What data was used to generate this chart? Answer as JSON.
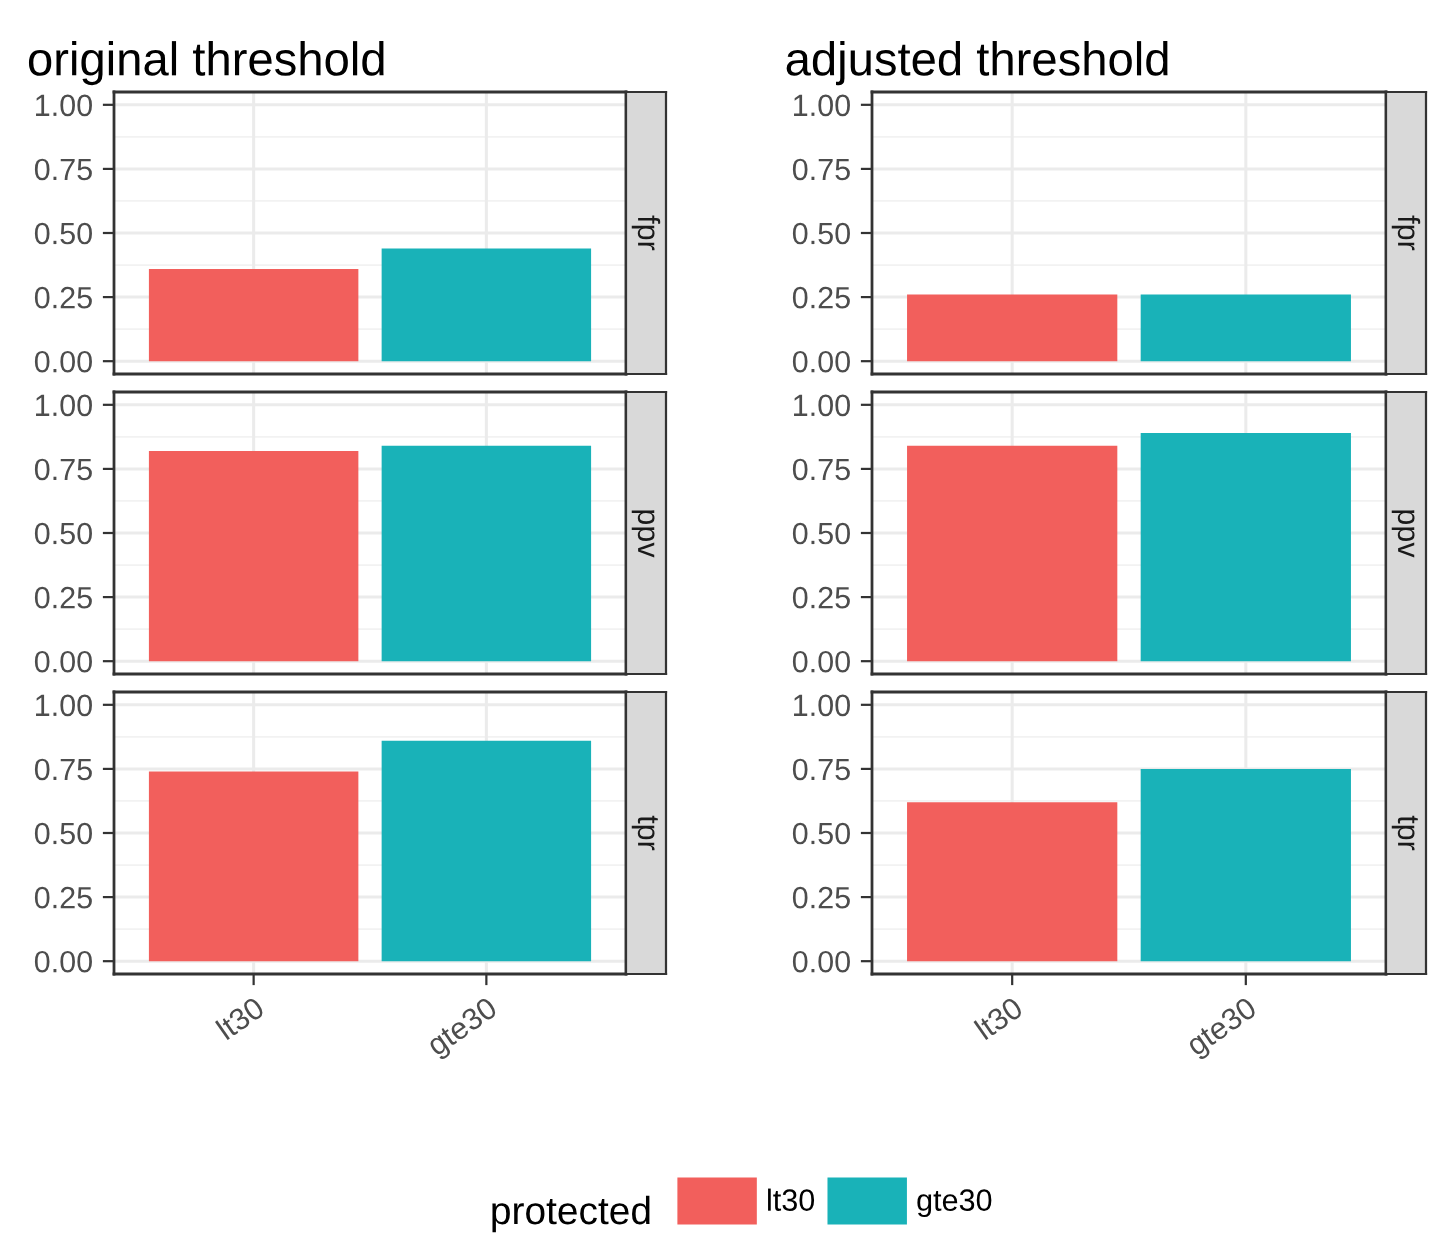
{
  "chart_data": [
    {
      "type": "bar",
      "title": "original threshold",
      "categories": [
        null,
        null
      ],
      "series": [
        {
          "color": "#f25f5c",
          "values": [
            0.36,
            null
          ]
        },
        {
          "color": "#19b2b8",
          "values": [
            null,
            0.44
          ]
        }
      ],
      "ylim": [
        -0.05,
        1.05
      ],
      "yticks": [
        {
          "value": 0,
          "label": "0.00"
        },
        {
          "value": 0.25,
          "label": "0.25"
        },
        {
          "value": 0.5,
          "label": "0.50"
        },
        {
          "value": 0.75,
          "label": "0.75"
        },
        {
          "value": 1,
          "label": "1.00"
        }
      ],
      "grid": true,
      "tick_labels": "y",
      "annotations": [
        "fpr"
      ]
    },
    {
      "type": "bar",
      "title": "adjusted threshold",
      "categories": [
        null,
        null
      ],
      "series": [
        {
          "color": "#f25f5c",
          "values": [
            0.26,
            null
          ]
        },
        {
          "color": "#19b2b8",
          "values": [
            null,
            0.26
          ]
        }
      ],
      "ylim": [
        -0.05,
        1.05
      ],
      "yticks": [
        {
          "value": 0,
          "label": "0.00"
        },
        {
          "value": 0.25,
          "label": "0.25"
        },
        {
          "value": 0.5,
          "label": "0.50"
        },
        {
          "value": 0.75,
          "label": "0.75"
        },
        {
          "value": 1,
          "label": "1.00"
        }
      ],
      "grid": true,
      "tick_labels": "y",
      "annotations": [
        "fpr"
      ]
    },
    {
      "type": "bar",
      "categories": [
        null,
        null
      ],
      "series": [
        {
          "color": "#f25f5c",
          "values": [
            0.82,
            null
          ]
        },
        {
          "color": "#19b2b8",
          "values": [
            null,
            0.84
          ]
        }
      ],
      "ylim": [
        -0.05,
        1.05
      ],
      "yticks": [
        {
          "value": 0,
          "label": "0.00"
        },
        {
          "value": 0.25,
          "label": "0.25"
        },
        {
          "value": 0.5,
          "label": "0.50"
        },
        {
          "value": 0.75,
          "label": "0.75"
        },
        {
          "value": 1,
          "label": "1.00"
        }
      ],
      "grid": true,
      "tick_labels": "y",
      "annotations": [
        "ppv"
      ]
    },
    {
      "type": "bar",
      "categories": [
        null,
        null
      ],
      "series": [
        {
          "color": "#f25f5c",
          "values": [
            0.84,
            null
          ]
        },
        {
          "color": "#19b2b8",
          "values": [
            null,
            0.89
          ]
        }
      ],
      "ylim": [
        -0.05,
        1.05
      ],
      "yticks": [
        {
          "value": 0,
          "label": "0.00"
        },
        {
          "value": 0.25,
          "label": "0.25"
        },
        {
          "value": 0.5,
          "label": "0.50"
        },
        {
          "value": 0.75,
          "label": "0.75"
        },
        {
          "value": 1,
          "label": "1.00"
        }
      ],
      "grid": true,
      "tick_labels": "y",
      "annotations": [
        "ppv"
      ]
    },
    {
      "type": "bar",
      "categories": [
        "lt30",
        "gte30"
      ],
      "series": [
        {
          "color": "#f25f5c",
          "values": [
            0.74,
            null
          ]
        },
        {
          "color": "#19b2b8",
          "values": [
            null,
            0.86
          ]
        }
      ],
      "ylim": [
        -0.05,
        1.05
      ],
      "yticks": [
        {
          "value": 0,
          "label": "0.00"
        },
        {
          "value": 0.25,
          "label": "0.25"
        },
        {
          "value": 0.5,
          "label": "0.50"
        },
        {
          "value": 0.75,
          "label": "0.75"
        },
        {
          "value": 1,
          "label": "1.00"
        }
      ],
      "grid": true,
      "annotations": [
        "tpr"
      ]
    },
    {
      "type": "bar",
      "categories": [
        "lt30",
        "gte30"
      ],
      "series": [
        {
          "name": "lt30",
          "color": "#f25f5c",
          "values": [
            0.62,
            null
          ]
        },
        {
          "name": "gte30",
          "color": "#19b2b8",
          "values": [
            null,
            0.75
          ]
        }
      ],
      "ylim": [
        -0.05,
        1.05
      ],
      "yticks": [
        {
          "value": 0,
          "label": "0.00"
        },
        {
          "value": 0.25,
          "label": "0.25"
        },
        {
          "value": 0.5,
          "label": "0.50"
        },
        {
          "value": 0.75,
          "label": "0.75"
        },
        {
          "value": 1,
          "label": "1.00"
        }
      ],
      "grid": true,
      "annotations": [
        "tpr"
      ],
      "legend": "bottom",
      "legend_title": "protected"
    }
  ]
}
